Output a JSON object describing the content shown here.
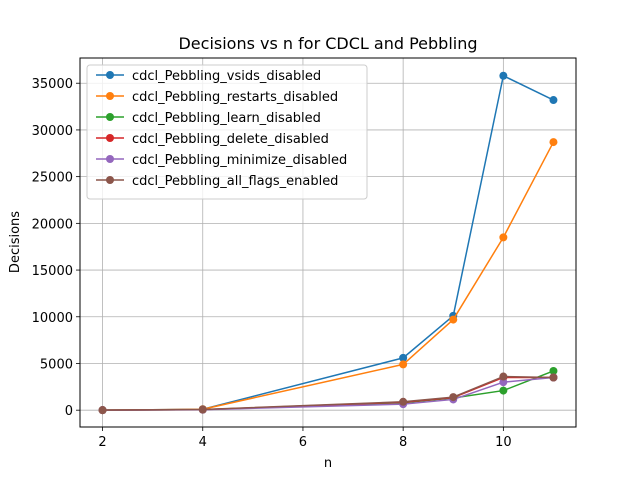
{
  "chart_data": {
    "type": "line",
    "title": "Decisions vs n for CDCL and Pebbling",
    "xlabel": "n",
    "ylabel": "Decisions",
    "xlim": [
      1.55,
      11.45
    ],
    "ylim": [
      -1800,
      37700
    ],
    "xticks": [
      2,
      4,
      6,
      8,
      10
    ],
    "yticks": [
      0,
      5000,
      10000,
      15000,
      20000,
      25000,
      30000,
      35000
    ],
    "grid": true,
    "legend_position": "top-left",
    "x": [
      2,
      4,
      8,
      9,
      10,
      11
    ],
    "series": [
      {
        "name": "cdcl_Pebbling_vsids_disabled",
        "color": "#1f77b4",
        "values": [
          0,
          100,
          5600,
          10100,
          35800,
          33200
        ]
      },
      {
        "name": "cdcl_Pebbling_restarts_disabled",
        "color": "#ff7f0e",
        "values": [
          0,
          100,
          4900,
          9700,
          18500,
          28700
        ]
      },
      {
        "name": "cdcl_Pebbling_learn_disabled",
        "color": "#2ca02c",
        "values": [
          0,
          60,
          800,
          1300,
          2100,
          4200
        ]
      },
      {
        "name": "cdcl_Pebbling_delete_disabled",
        "color": "#d62728",
        "values": [
          0,
          60,
          850,
          1350,
          3500,
          3500
        ]
      },
      {
        "name": "cdcl_Pebbling_minimize_disabled",
        "color": "#9467bd",
        "values": [
          0,
          50,
          650,
          1150,
          3000,
          3500
        ]
      },
      {
        "name": "cdcl_Pebbling_all_flags_enabled",
        "color": "#8c564b",
        "values": [
          0,
          70,
          900,
          1400,
          3600,
          3500
        ]
      }
    ]
  }
}
